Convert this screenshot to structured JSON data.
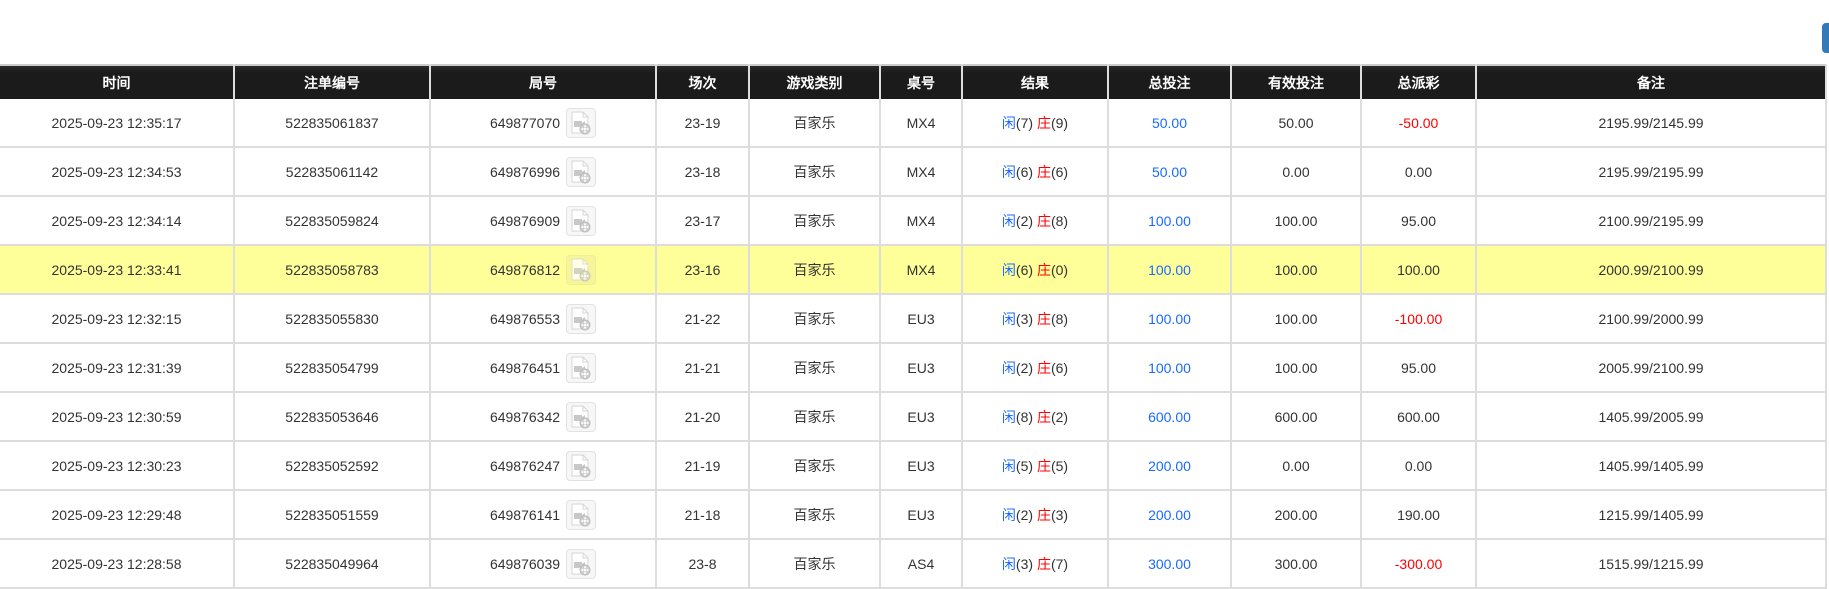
{
  "colors": {
    "header_bg": "#1b1b1b",
    "highlight_row": "#ffff99",
    "blue": "#1a6aff",
    "red": "#ff0000",
    "button": "#337ab7"
  },
  "columns": [
    "时间",
    "注单编号",
    "局号",
    "场次",
    "游戏类别",
    "桌号",
    "结果",
    "总投注",
    "有效投注",
    "总派彩",
    "备注"
  ],
  "result_labels": {
    "player": "闲",
    "banker": "庄"
  },
  "rows": [
    {
      "time": "2025-09-23 12:35:17",
      "bet_id": "522835061837",
      "round": "649877070",
      "session": "23-19",
      "game": "百家乐",
      "table": "MX4",
      "player": "(7)",
      "banker": "(9)",
      "total": "50.00",
      "valid": "50.00",
      "payout": "-50.00",
      "payout_neg": true,
      "note": "2195.99/2145.99",
      "highlight": false
    },
    {
      "time": "2025-09-23 12:34:53",
      "bet_id": "522835061142",
      "round": "649876996",
      "session": "23-18",
      "game": "百家乐",
      "table": "MX4",
      "player": "(6)",
      "banker": "(6)",
      "total": "50.00",
      "valid": "0.00",
      "payout": "0.00",
      "payout_neg": false,
      "note": "2195.99/2195.99",
      "highlight": false
    },
    {
      "time": "2025-09-23 12:34:14",
      "bet_id": "522835059824",
      "round": "649876909",
      "session": "23-17",
      "game": "百家乐",
      "table": "MX4",
      "player": "(2)",
      "banker": "(8)",
      "total": "100.00",
      "valid": "100.00",
      "payout": "95.00",
      "payout_neg": false,
      "note": "2100.99/2195.99",
      "highlight": false
    },
    {
      "time": "2025-09-23 12:33:41",
      "bet_id": "522835058783",
      "round": "649876812",
      "session": "23-16",
      "game": "百家乐",
      "table": "MX4",
      "player": "(6)",
      "banker": "(0)",
      "total": "100.00",
      "valid": "100.00",
      "payout": "100.00",
      "payout_neg": false,
      "note": "2000.99/2100.99",
      "highlight": true
    },
    {
      "time": "2025-09-23 12:32:15",
      "bet_id": "522835055830",
      "round": "649876553",
      "session": "21-22",
      "game": "百家乐",
      "table": "EU3",
      "player": "(3)",
      "banker": "(8)",
      "total": "100.00",
      "valid": "100.00",
      "payout": "-100.00",
      "payout_neg": true,
      "note": "2100.99/2000.99",
      "highlight": false
    },
    {
      "time": "2025-09-23 12:31:39",
      "bet_id": "522835054799",
      "round": "649876451",
      "session": "21-21",
      "game": "百家乐",
      "table": "EU3",
      "player": "(2)",
      "banker": "(6)",
      "total": "100.00",
      "valid": "100.00",
      "payout": "95.00",
      "payout_neg": false,
      "note": "2005.99/2100.99",
      "highlight": false
    },
    {
      "time": "2025-09-23 12:30:59",
      "bet_id": "522835053646",
      "round": "649876342",
      "session": "21-20",
      "game": "百家乐",
      "table": "EU3",
      "player": "(8)",
      "banker": "(2)",
      "total": "600.00",
      "valid": "600.00",
      "payout": "600.00",
      "payout_neg": false,
      "note": "1405.99/2005.99",
      "highlight": false
    },
    {
      "time": "2025-09-23 12:30:23",
      "bet_id": "522835052592",
      "round": "649876247",
      "session": "21-19",
      "game": "百家乐",
      "table": "EU3",
      "player": "(5)",
      "banker": "(5)",
      "total": "200.00",
      "valid": "0.00",
      "payout": "0.00",
      "payout_neg": false,
      "note": "1405.99/1405.99",
      "highlight": false
    },
    {
      "time": "2025-09-23 12:29:48",
      "bet_id": "522835051559",
      "round": "649876141",
      "session": "21-18",
      "game": "百家乐",
      "table": "EU3",
      "player": "(2)",
      "banker": "(3)",
      "total": "200.00",
      "valid": "200.00",
      "payout": "190.00",
      "payout_neg": false,
      "note": "1215.99/1405.99",
      "highlight": false
    },
    {
      "time": "2025-09-23 12:28:58",
      "bet_id": "522835049964",
      "round": "649876039",
      "session": "23-8",
      "game": "百家乐",
      "table": "AS4",
      "player": "(3)",
      "banker": "(7)",
      "total": "300.00",
      "valid": "300.00",
      "payout": "-300.00",
      "payout_neg": true,
      "note": "1515.99/1215.99",
      "highlight": false
    }
  ]
}
